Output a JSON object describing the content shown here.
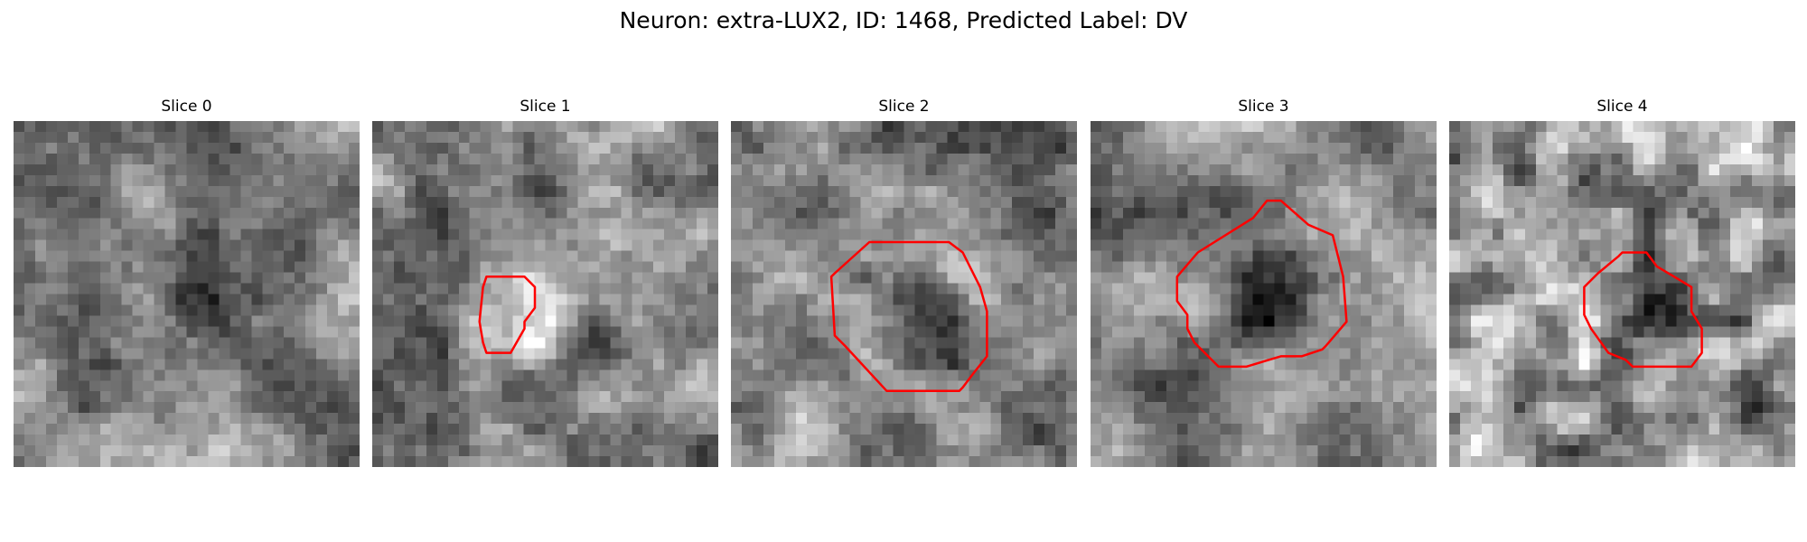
{
  "figure": {
    "title": "Neuron: extra-LUX2, ID: 1468, Predicted Label: DV"
  },
  "panels": [
    {
      "label": "Slice 0",
      "contour": null
    },
    {
      "label": "Slice 1",
      "contour": [
        [
          0.33,
          0.45
        ],
        [
          0.36,
          0.45
        ],
        [
          0.44,
          0.45
        ],
        [
          0.47,
          0.48
        ],
        [
          0.47,
          0.54
        ],
        [
          0.44,
          0.58
        ],
        [
          0.44,
          0.6
        ],
        [
          0.4,
          0.67
        ],
        [
          0.33,
          0.67
        ],
        [
          0.32,
          0.64
        ],
        [
          0.31,
          0.58
        ],
        [
          0.32,
          0.48
        ]
      ]
    },
    {
      "label": "Slice 2",
      "contour": [
        [
          0.4,
          0.35
        ],
        [
          0.63,
          0.35
        ],
        [
          0.67,
          0.38
        ],
        [
          0.72,
          0.48
        ],
        [
          0.74,
          0.55
        ],
        [
          0.74,
          0.68
        ],
        [
          0.7,
          0.73
        ],
        [
          0.67,
          0.77
        ],
        [
          0.66,
          0.78
        ],
        [
          0.45,
          0.78
        ],
        [
          0.33,
          0.65
        ],
        [
          0.3,
          0.62
        ],
        [
          0.29,
          0.45
        ],
        [
          0.3,
          0.44
        ]
      ]
    },
    {
      "label": "Slice 3",
      "contour": [
        [
          0.47,
          0.28
        ],
        [
          0.51,
          0.23
        ],
        [
          0.55,
          0.23
        ],
        [
          0.63,
          0.3
        ],
        [
          0.7,
          0.33
        ],
        [
          0.73,
          0.45
        ],
        [
          0.74,
          0.58
        ],
        [
          0.68,
          0.65
        ],
        [
          0.67,
          0.66
        ],
        [
          0.61,
          0.68
        ],
        [
          0.55,
          0.68
        ],
        [
          0.45,
          0.71
        ],
        [
          0.37,
          0.71
        ],
        [
          0.3,
          0.64
        ],
        [
          0.28,
          0.6
        ],
        [
          0.28,
          0.56
        ],
        [
          0.25,
          0.52
        ],
        [
          0.25,
          0.45
        ],
        [
          0.31,
          0.38
        ]
      ]
    },
    {
      "label": "Slice 4",
      "contour": [
        [
          0.49,
          0.39
        ],
        [
          0.5,
          0.38
        ],
        [
          0.57,
          0.38
        ],
        [
          0.6,
          0.42
        ],
        [
          0.65,
          0.45
        ],
        [
          0.7,
          0.48
        ],
        [
          0.7,
          0.55
        ],
        [
          0.73,
          0.6
        ],
        [
          0.73,
          0.67
        ],
        [
          0.7,
          0.71
        ],
        [
          0.68,
          0.71
        ],
        [
          0.53,
          0.71
        ],
        [
          0.51,
          0.69
        ],
        [
          0.46,
          0.67
        ],
        [
          0.41,
          0.6
        ],
        [
          0.39,
          0.56
        ],
        [
          0.39,
          0.48
        ],
        [
          0.43,
          0.44
        ]
      ]
    }
  ]
}
